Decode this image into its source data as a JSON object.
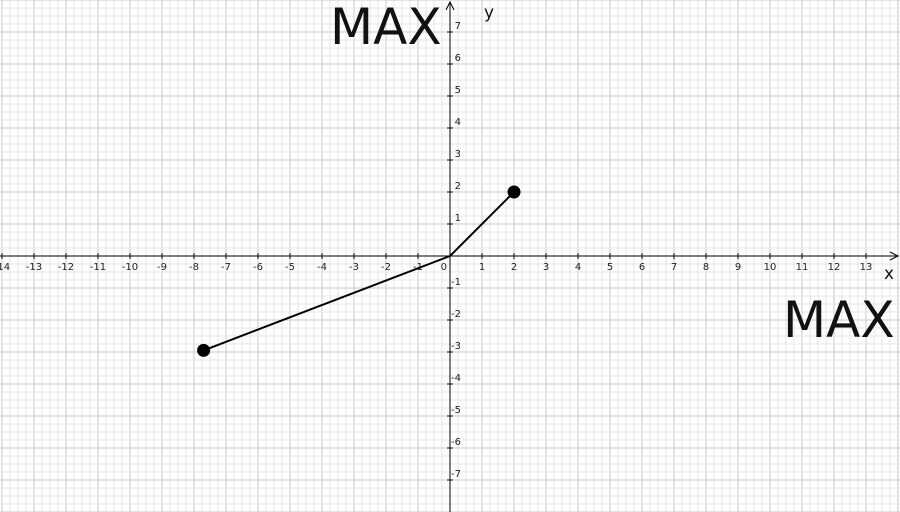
{
  "labels": {
    "top_left": "MAX",
    "right": "MAX"
  },
  "axes": {
    "x_label": "x",
    "y_label": "y",
    "xlim": [
      -14,
      13
    ],
    "ylim": [
      -7,
      7
    ],
    "x_ticks": [
      "-14",
      "-13",
      "-12",
      "-11",
      "-10",
      "-9",
      "-8",
      "-7",
      "-6",
      "-5",
      "-4",
      "-3",
      "-2",
      "-1",
      "1",
      "2",
      "3",
      "4",
      "5",
      "6",
      "7",
      "8",
      "9",
      "10",
      "11",
      "12",
      "13"
    ],
    "y_ticks": [
      "7",
      "6",
      "5",
      "4",
      "3",
      "2",
      "1",
      "-1",
      "-2",
      "-3",
      "-4",
      "-5",
      "-6",
      "-7"
    ],
    "origin_label": "0"
  },
  "chart_data": {
    "type": "line",
    "grid": true,
    "segments": [
      {
        "from": [
          0,
          0
        ],
        "to": [
          2,
          2
        ]
      },
      {
        "from": [
          0,
          0
        ],
        "to": [
          -7.7,
          -2.95
        ]
      }
    ],
    "points": [
      {
        "x": 2,
        "y": 2
      },
      {
        "x": -7.7,
        "y": -2.95
      }
    ],
    "colors": {
      "line": "#000000",
      "grid_minor": "#e6e6e6",
      "grid_major": "#c8c8c8",
      "axis": "#000000"
    }
  }
}
